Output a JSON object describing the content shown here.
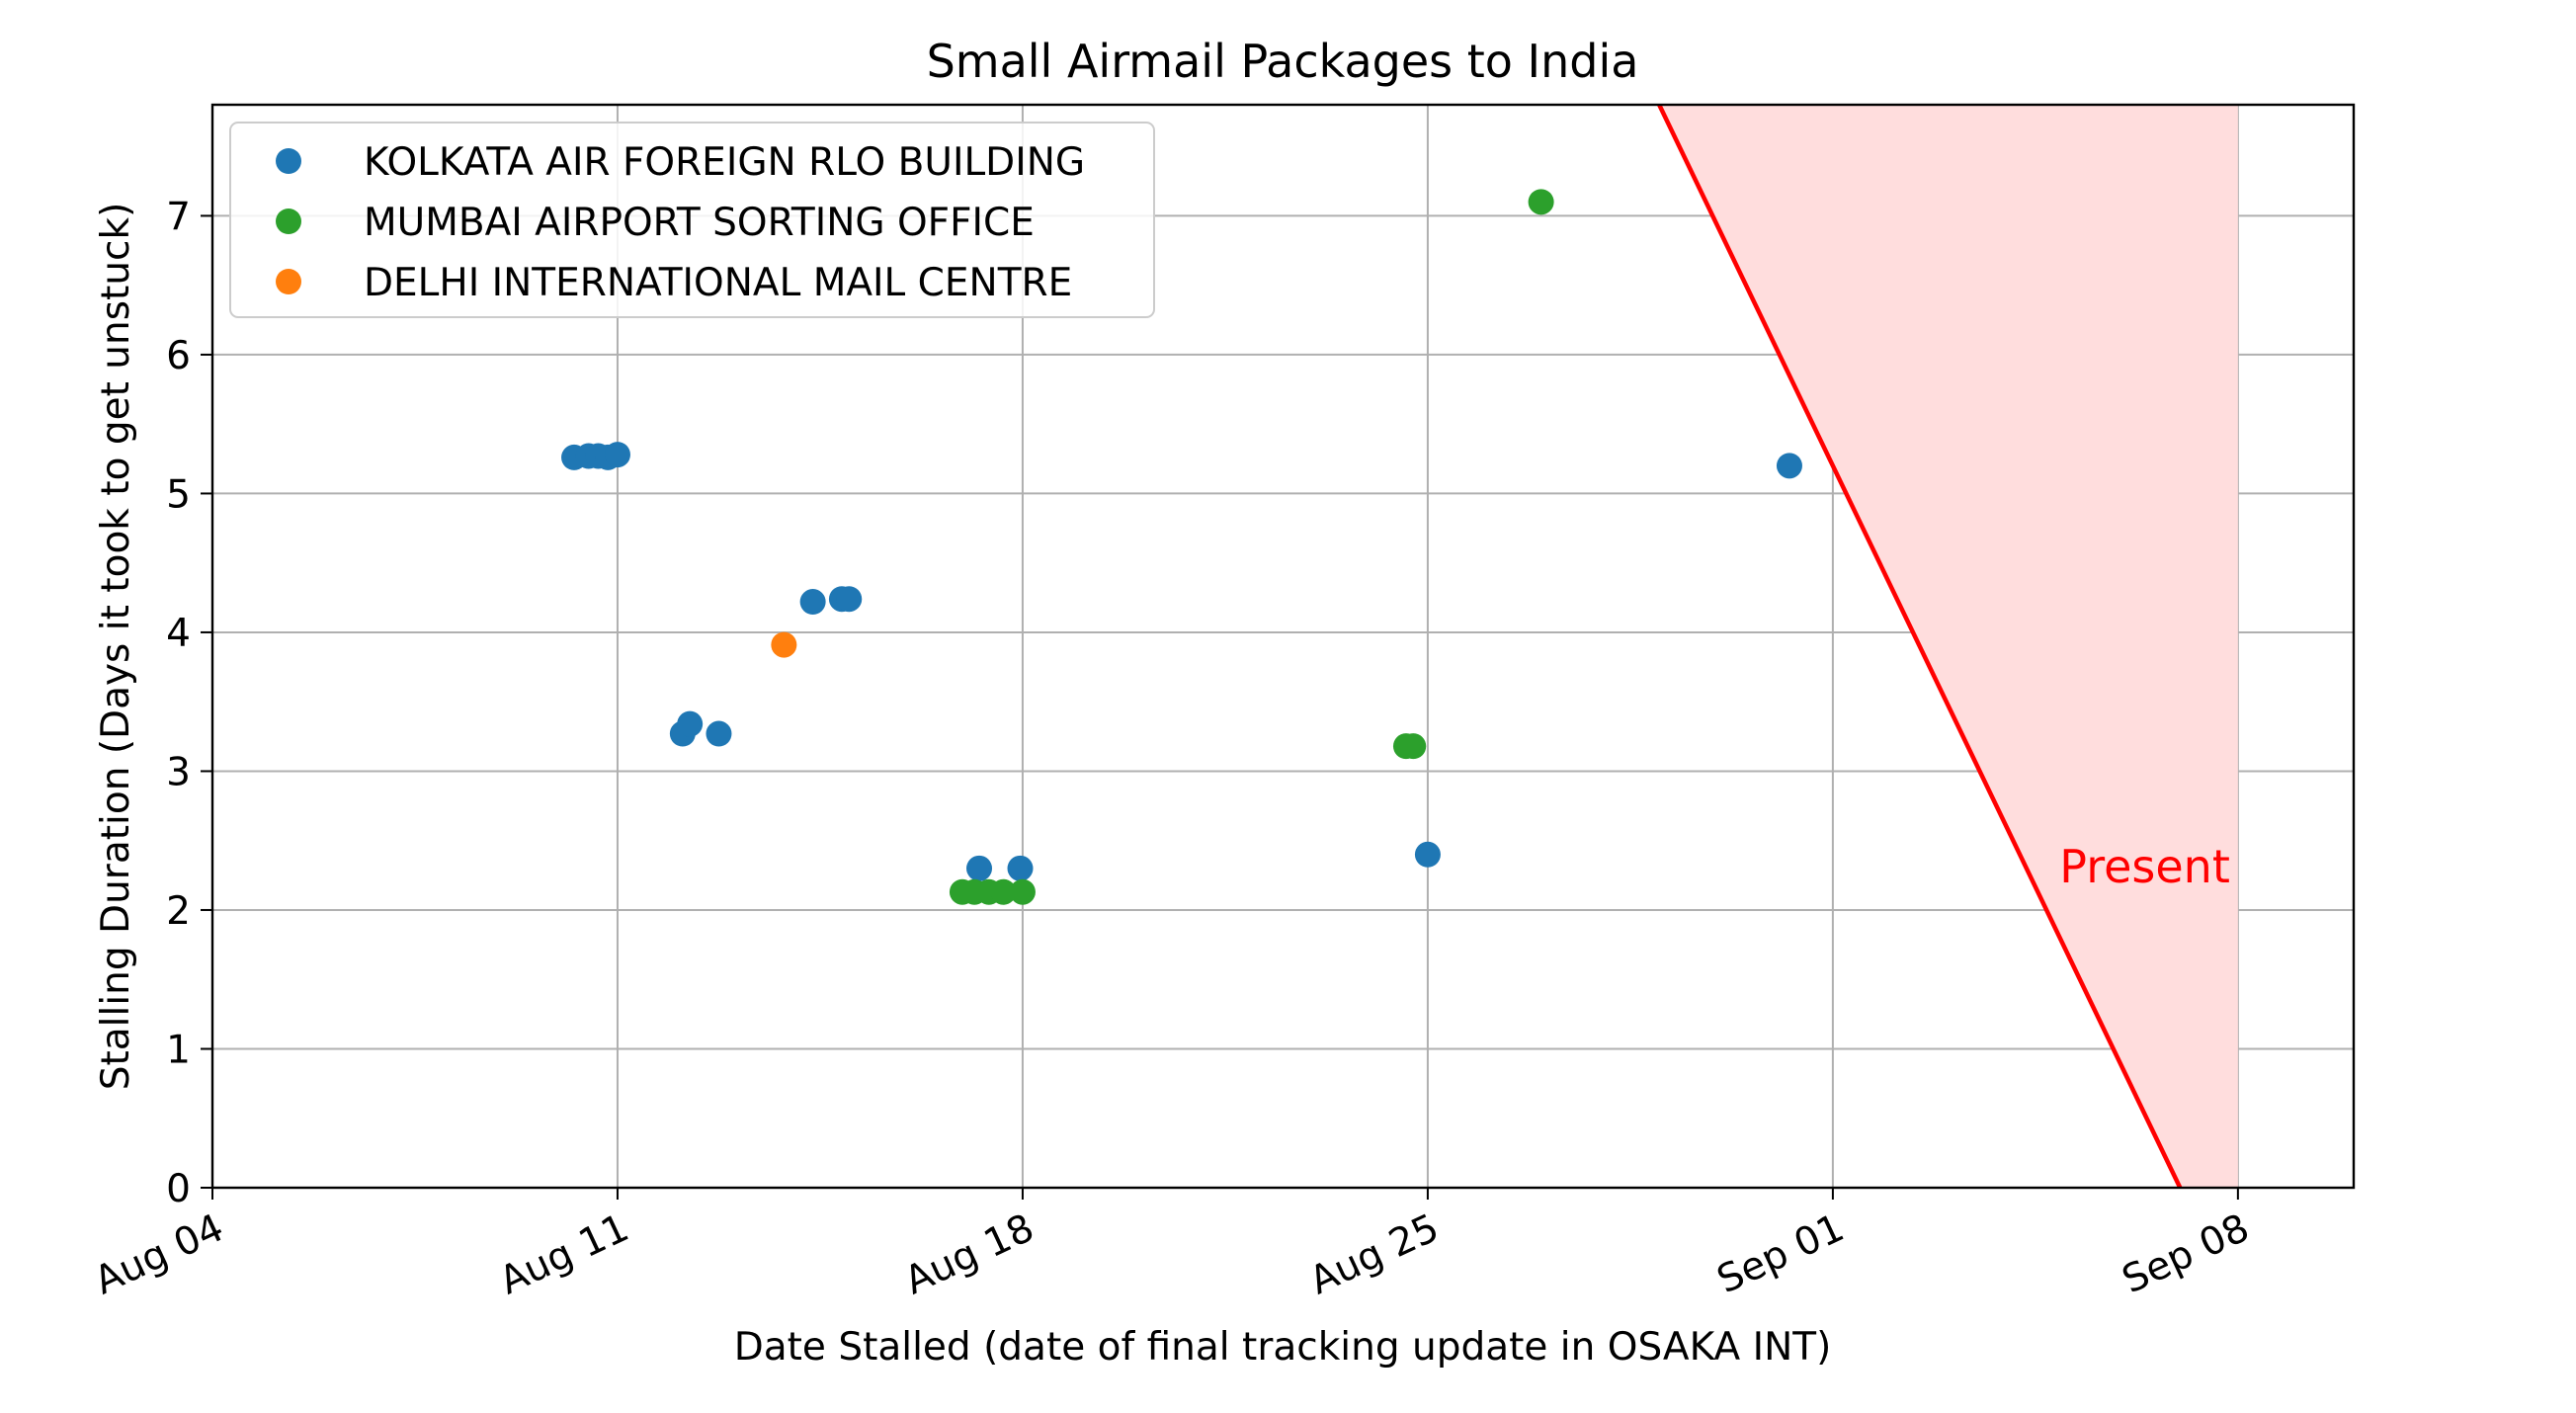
{
  "chart_data": {
    "type": "scatter",
    "title": "Small Airmail Packages to India",
    "xlabel": "Date Stalled (date of final tracking update in OSAKA INT)",
    "ylabel": "Stalling Duration (Days it took to get unstuck)",
    "x_ticks": [
      "Aug 04",
      "Aug 11",
      "Aug 18",
      "Aug 25",
      "Sep 01",
      "Sep 08"
    ],
    "y_ticks": [
      "0",
      "1",
      "2",
      "3",
      "4",
      "5",
      "6",
      "7"
    ],
    "xlim": [
      "2024-08-04",
      "2024-09-10T00:00"
    ],
    "ylim": [
      0,
      7.8
    ],
    "grid": true,
    "legend_position": "top-left",
    "series": [
      {
        "name": "KOLKATA AIR FOREIGN RLO BUILDING",
        "color": "#1f77b4",
        "points": [
          {
            "x": "2024-08-10T06:00",
            "y": 5.26
          },
          {
            "x": "2024-08-10T12:00",
            "y": 5.27
          },
          {
            "x": "2024-08-10T16:00",
            "y": 5.27
          },
          {
            "x": "2024-08-10T20:00",
            "y": 5.26
          },
          {
            "x": "2024-08-11T00:00",
            "y": 5.28
          },
          {
            "x": "2024-08-12T03:00",
            "y": 3.27
          },
          {
            "x": "2024-08-12T06:00",
            "y": 3.34
          },
          {
            "x": "2024-08-12T18:00",
            "y": 3.27
          },
          {
            "x": "2024-08-14T09:00",
            "y": 4.22
          },
          {
            "x": "2024-08-14T21:00",
            "y": 4.24
          },
          {
            "x": "2024-08-15T00:00",
            "y": 4.24
          },
          {
            "x": "2024-08-17T06:00",
            "y": 2.3
          },
          {
            "x": "2024-08-17T23:00",
            "y": 2.3
          },
          {
            "x": "2024-08-25T00:00",
            "y": 2.4
          },
          {
            "x": "2024-08-31T06:00",
            "y": 5.2
          }
        ]
      },
      {
        "name": "MUMBAI AIRPORT SORTING OFFICE",
        "color": "#2ca02c",
        "points": [
          {
            "x": "2024-08-16T23:00",
            "y": 2.13
          },
          {
            "x": "2024-08-17T04:00",
            "y": 2.13
          },
          {
            "x": "2024-08-17T10:00",
            "y": 2.13
          },
          {
            "x": "2024-08-17T16:00",
            "y": 2.13
          },
          {
            "x": "2024-08-18T00:00",
            "y": 2.13
          },
          {
            "x": "2024-08-24T15:00",
            "y": 3.18
          },
          {
            "x": "2024-08-24T18:00",
            "y": 3.18
          },
          {
            "x": "2024-08-26T23:00",
            "y": 7.1
          }
        ]
      },
      {
        "name": "DELHI INTERNATIONAL MAIL CENTRE",
        "color": "#ff7f0e",
        "points": [
          {
            "x": "2024-08-13T21:00",
            "y": 3.91
          }
        ]
      }
    ],
    "present_line": {
      "label": "Present",
      "color": "#ff0000",
      "fill_color": "#ffdddd",
      "points": [
        {
          "x": "2024-08-29T00:00",
          "y": 7.8
        },
        {
          "x": "2024-09-07T00:00",
          "y": 0
        }
      ],
      "fill_right_edge": "2024-09-08",
      "label_at": {
        "x": "2024-09-04T22:00",
        "y": 2.2
      }
    }
  }
}
